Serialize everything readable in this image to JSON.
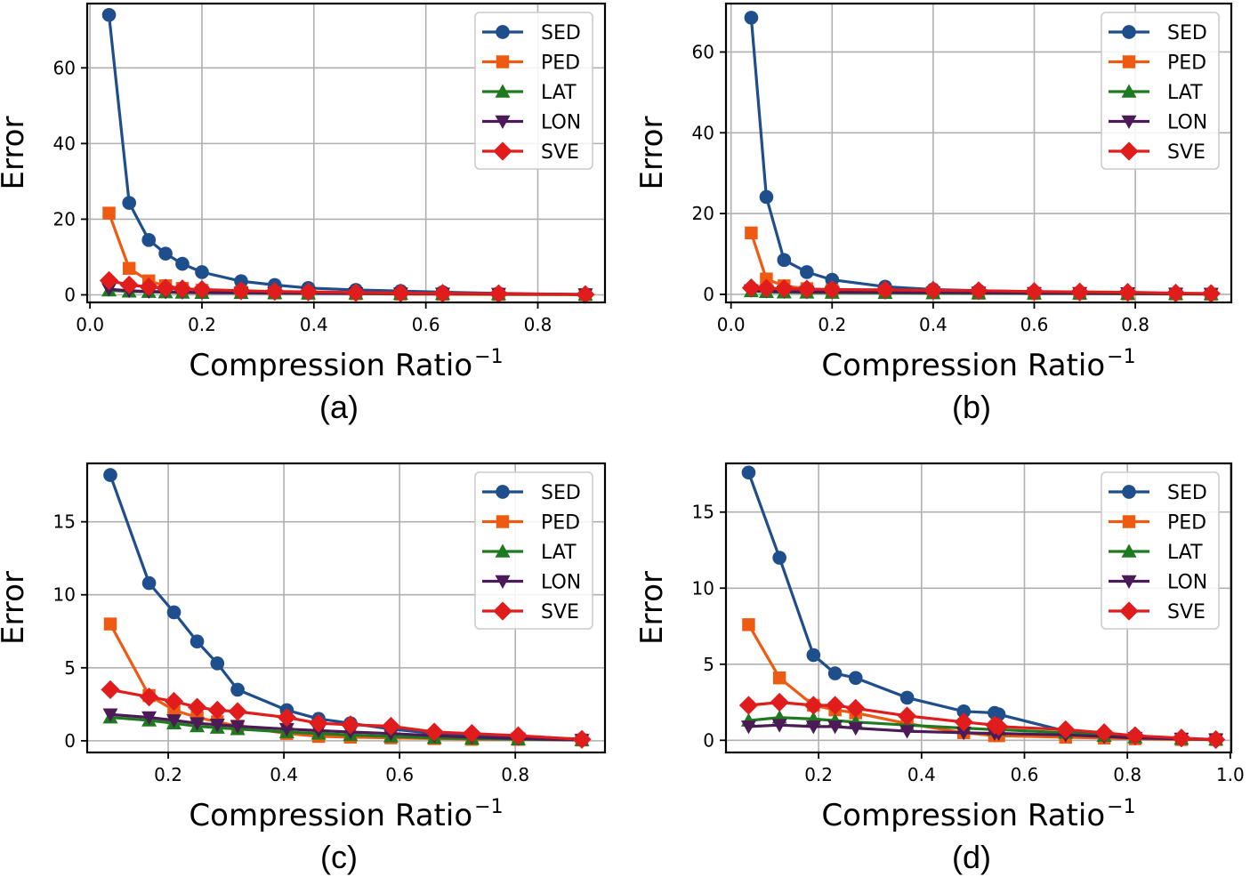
{
  "figure": {
    "panels": [
      {
        "caption": "(a)",
        "xlabel": "Compression Ratio",
        "xlabel_sup": "−1",
        "ylabel": "Error"
      },
      {
        "caption": "(b)",
        "xlabel": "Compression Ratio",
        "xlabel_sup": "−1",
        "ylabel": "Error"
      },
      {
        "caption": "(c)",
        "xlabel": "Compression Ratio",
        "xlabel_sup": "−1",
        "ylabel": "Error"
      },
      {
        "caption": "(d)",
        "xlabel": "Compression Ratio",
        "xlabel_sup": "−1",
        "ylabel": "Error"
      }
    ]
  },
  "series_style": [
    {
      "name": "SED",
      "color": "#1f4e8c",
      "marker": "circle"
    },
    {
      "name": "PED",
      "color": "#ee5a12",
      "marker": "square"
    },
    {
      "name": "LAT",
      "color": "#1e7a1e",
      "marker": "triangle-up"
    },
    {
      "name": "LON",
      "color": "#4b1a57",
      "marker": "triangle-down"
    },
    {
      "name": "SVE",
      "color": "#e01c1c",
      "marker": "diamond"
    }
  ],
  "chart_data": [
    {
      "type": "line",
      "title": "(a)",
      "xlabel": "Compression Ratio⁻¹",
      "ylabel": "Error",
      "xlim": [
        -0.005,
        0.92
      ],
      "ylim": [
        -2,
        77
      ],
      "xticks": [
        0.0,
        0.2,
        0.4,
        0.6,
        0.8
      ],
      "xtick_labels": [
        "0.0",
        "0.2",
        "0.4",
        "0.6",
        "0.8"
      ],
      "yticks": [
        0,
        20,
        40,
        60
      ],
      "ytick_labels": [
        "0",
        "20",
        "40",
        "60"
      ],
      "legend": "top-right",
      "grid": true,
      "x": [
        0.034,
        0.07,
        0.105,
        0.135,
        0.165,
        0.2,
        0.27,
        0.33,
        0.39,
        0.475,
        0.555,
        0.63,
        0.73,
        0.885
      ],
      "series": [
        {
          "name": "SED",
          "values": [
            74.0,
            24.3,
            14.5,
            10.9,
            8.2,
            6.0,
            3.6,
            2.6,
            1.8,
            1.3,
            1.0,
            0.7,
            0.4,
            0.1
          ]
        },
        {
          "name": "PED",
          "values": [
            21.6,
            7.0,
            3.7,
            2.4,
            1.7,
            1.2,
            0.7,
            0.5,
            0.4,
            0.3,
            0.2,
            0.15,
            0.1,
            0.05
          ]
        },
        {
          "name": "LAT",
          "values": [
            1.2,
            0.9,
            0.8,
            0.7,
            0.6,
            0.55,
            0.5,
            0.45,
            0.4,
            0.35,
            0.3,
            0.25,
            0.2,
            0.1
          ]
        },
        {
          "name": "LON",
          "values": [
            1.5,
            1.1,
            0.9,
            0.8,
            0.7,
            0.6,
            0.55,
            0.5,
            0.45,
            0.4,
            0.35,
            0.3,
            0.25,
            0.1
          ]
        },
        {
          "name": "SVE",
          "values": [
            3.8,
            2.6,
            2.1,
            1.8,
            1.6,
            1.4,
            1.1,
            0.9,
            0.8,
            0.6,
            0.5,
            0.4,
            0.3,
            0.1
          ]
        }
      ]
    },
    {
      "type": "line",
      "title": "(b)",
      "xlabel": "Compression Ratio⁻¹",
      "ylabel": "Error",
      "xlim": [
        -0.01,
        0.99
      ],
      "ylim": [
        -2,
        72
      ],
      "xticks": [
        0.0,
        0.2,
        0.4,
        0.6,
        0.8
      ],
      "xtick_labels": [
        "0.0",
        "0.2",
        "0.4",
        "0.6",
        "0.8"
      ],
      "yticks": [
        0,
        20,
        40,
        60
      ],
      "ytick_labels": [
        "0",
        "20",
        "40",
        "60"
      ],
      "legend": "top-right",
      "grid": true,
      "x": [
        0.04,
        0.07,
        0.105,
        0.15,
        0.2,
        0.305,
        0.4,
        0.49,
        0.6,
        0.69,
        0.785,
        0.88,
        0.95
      ],
      "series": [
        {
          "name": "SED",
          "values": [
            68.5,
            24.1,
            8.5,
            5.5,
            3.6,
            1.9,
            1.2,
            0.9,
            0.6,
            0.5,
            0.4,
            0.2,
            0.1
          ]
        },
        {
          "name": "PED",
          "values": [
            15.2,
            3.8,
            2.1,
            1.4,
            1.0,
            0.6,
            0.4,
            0.3,
            0.2,
            0.2,
            0.1,
            0.1,
            0.05
          ]
        },
        {
          "name": "LAT",
          "values": [
            0.8,
            0.6,
            0.5,
            0.45,
            0.4,
            0.35,
            0.3,
            0.25,
            0.2,
            0.2,
            0.15,
            0.1,
            0.05
          ]
        },
        {
          "name": "LON",
          "values": [
            1.0,
            0.8,
            0.7,
            0.6,
            0.55,
            0.5,
            0.45,
            0.4,
            0.3,
            0.3,
            0.25,
            0.15,
            0.1
          ]
        },
        {
          "name": "SVE",
          "values": [
            1.6,
            1.5,
            1.4,
            1.3,
            1.2,
            1.1,
            1.0,
            0.9,
            0.7,
            0.6,
            0.5,
            0.3,
            0.2
          ]
        }
      ]
    },
    {
      "type": "line",
      "title": "(c)",
      "xlabel": "Compression Ratio⁻¹",
      "ylabel": "Error",
      "xlim": [
        0.06,
        0.955
      ],
      "ylim": [
        -0.8,
        19.0
      ],
      "xticks": [
        0.2,
        0.4,
        0.6,
        0.8
      ],
      "xtick_labels": [
        "0.2",
        "0.4",
        "0.6",
        "0.8"
      ],
      "yticks": [
        0,
        5,
        10,
        15
      ],
      "ytick_labels": [
        "0",
        "5",
        "10",
        "15"
      ],
      "legend": "top-right",
      "grid": true,
      "x": [
        0.1,
        0.167,
        0.21,
        0.25,
        0.285,
        0.32,
        0.405,
        0.46,
        0.515,
        0.585,
        0.66,
        0.725,
        0.805,
        0.915
      ],
      "series": [
        {
          "name": "SED",
          "values": [
            18.2,
            10.8,
            8.8,
            6.8,
            5.3,
            3.5,
            2.1,
            1.5,
            1.2,
            0.8,
            0.5,
            0.35,
            0.2,
            0.1
          ]
        },
        {
          "name": "PED",
          "values": [
            8.0,
            3.1,
            2.1,
            1.6,
            1.3,
            1.0,
            0.5,
            0.3,
            0.25,
            0.2,
            0.15,
            0.1,
            0.1,
            0.05
          ]
        },
        {
          "name": "LAT",
          "values": [
            1.6,
            1.4,
            1.2,
            1.0,
            0.9,
            0.8,
            0.6,
            0.5,
            0.4,
            0.3,
            0.2,
            0.15,
            0.1,
            0.05
          ]
        },
        {
          "name": "LON",
          "values": [
            1.8,
            1.6,
            1.4,
            1.2,
            1.1,
            1.0,
            0.8,
            0.7,
            0.6,
            0.5,
            0.35,
            0.25,
            0.15,
            0.05
          ]
        },
        {
          "name": "SVE",
          "values": [
            3.5,
            3.0,
            2.7,
            2.3,
            2.1,
            2.0,
            1.6,
            1.2,
            1.1,
            1.0,
            0.6,
            0.5,
            0.35,
            0.1
          ]
        }
      ]
    },
    {
      "type": "line",
      "title": "(d)",
      "xlabel": "Compression Ratio⁻¹",
      "ylabel": "Error",
      "xlim": [
        0.02,
        1.002
      ],
      "ylim": [
        -0.8,
        18.2
      ],
      "xticks": [
        0.2,
        0.4,
        0.6,
        0.8,
        1.0
      ],
      "xtick_labels": [
        "0.2",
        "0.4",
        "0.6",
        "0.8",
        "1.0"
      ],
      "yticks": [
        0,
        5,
        10,
        15
      ],
      "ytick_labels": [
        "0",
        "5",
        "10",
        "15"
      ],
      "legend": "top-right",
      "grid": true,
      "x": [
        0.064,
        0.124,
        0.19,
        0.232,
        0.272,
        0.372,
        0.482,
        0.542,
        0.55,
        0.68,
        0.755,
        0.815,
        0.905,
        0.972
      ],
      "series": [
        {
          "name": "SED",
          "values": [
            17.6,
            12.0,
            5.6,
            4.4,
            4.1,
            2.8,
            1.9,
            1.8,
            1.7,
            0.6,
            0.4,
            0.3,
            0.1,
            0.05
          ]
        },
        {
          "name": "PED",
          "values": [
            7.6,
            4.1,
            2.3,
            2.0,
            1.8,
            1.1,
            0.5,
            0.3,
            0.3,
            0.2,
            0.15,
            0.1,
            0.05,
            0.05
          ]
        },
        {
          "name": "LAT",
          "values": [
            1.3,
            1.5,
            1.4,
            1.3,
            1.2,
            1.0,
            0.8,
            0.7,
            0.7,
            0.5,
            0.3,
            0.2,
            0.1,
            0.05
          ]
        },
        {
          "name": "LON",
          "values": [
            0.9,
            1.0,
            0.9,
            0.9,
            0.8,
            0.6,
            0.5,
            0.45,
            0.45,
            0.35,
            0.25,
            0.15,
            0.1,
            0.05
          ]
        },
        {
          "name": "SVE",
          "values": [
            2.3,
            2.5,
            2.3,
            2.3,
            2.1,
            1.6,
            1.2,
            1.0,
            0.9,
            0.7,
            0.5,
            0.3,
            0.15,
            0.05
          ]
        }
      ]
    }
  ]
}
